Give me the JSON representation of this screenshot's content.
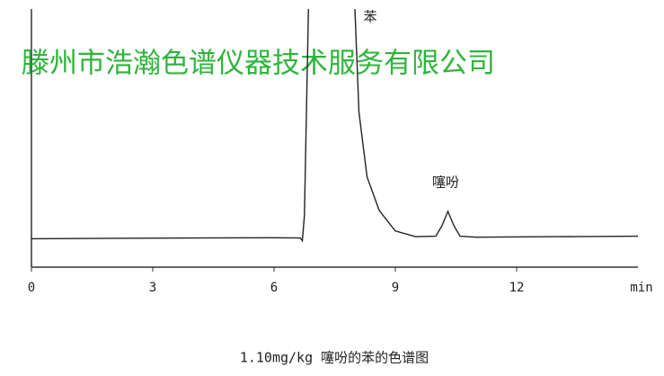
{
  "chart_data": {
    "type": "line",
    "title": "1.10mg/kg 噻吩的苯的色谱图",
    "watermark": "滕州市浩瀚色谱仪器技术服务有限公司",
    "x_label": "min",
    "annotations": [
      "苯",
      "噻吩"
    ],
    "x": [
      0,
      2,
      4,
      6,
      6.65,
      6.7,
      6.75,
      6.85,
      6.9,
      8.0,
      8.1,
      8.3,
      8.6,
      9.0,
      9.5,
      10.0,
      10.15,
      10.3,
      10.45,
      10.6,
      11,
      13,
      15
    ],
    "series": [
      {
        "color": "#222222",
        "values": [
          11,
          11.2,
          11.3,
          11.4,
          11.3,
          10.2,
          20,
          100,
          null,
          100,
          60,
          35,
          22,
          14,
          11.8,
          12,
          16,
          21.6,
          16,
          12,
          11.6,
          11.8,
          12
        ]
      }
    ],
    "xlim": [
      0,
      15
    ],
    "ylim": [
      0,
      100
    ],
    "xticks": [
      0,
      3,
      6,
      9,
      12
    ],
    "grid": false
  }
}
